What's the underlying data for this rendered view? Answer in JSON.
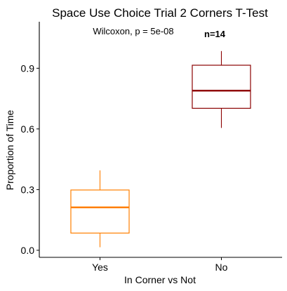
{
  "chart_data": {
    "type": "box",
    "title": "Space Use Choice Trial 2 Corners T-Test",
    "xlabel": "In Corner vs Not",
    "ylabel": "Proportion of Time",
    "annotation": "Wilcoxon, p = 5e-08",
    "n_label": "n=14",
    "categories": [
      "Yes",
      "No"
    ],
    "y_ticks": [
      "0.0",
      "0.3",
      "0.6",
      "0.9"
    ],
    "y_tick_values": [
      0.0,
      0.3,
      0.6,
      0.9
    ],
    "ylim": [
      -0.035,
      1.13
    ],
    "boxes": [
      {
        "category": "Yes",
        "min": 0.015,
        "q1": 0.085,
        "median": 0.212,
        "q3": 0.298,
        "max": 0.395,
        "color": "#FF7F00"
      },
      {
        "category": "No",
        "min": 0.605,
        "q1": 0.702,
        "median": 0.789,
        "q3": 0.915,
        "max": 0.985,
        "color": "#8B0000"
      }
    ],
    "grid": false
  }
}
